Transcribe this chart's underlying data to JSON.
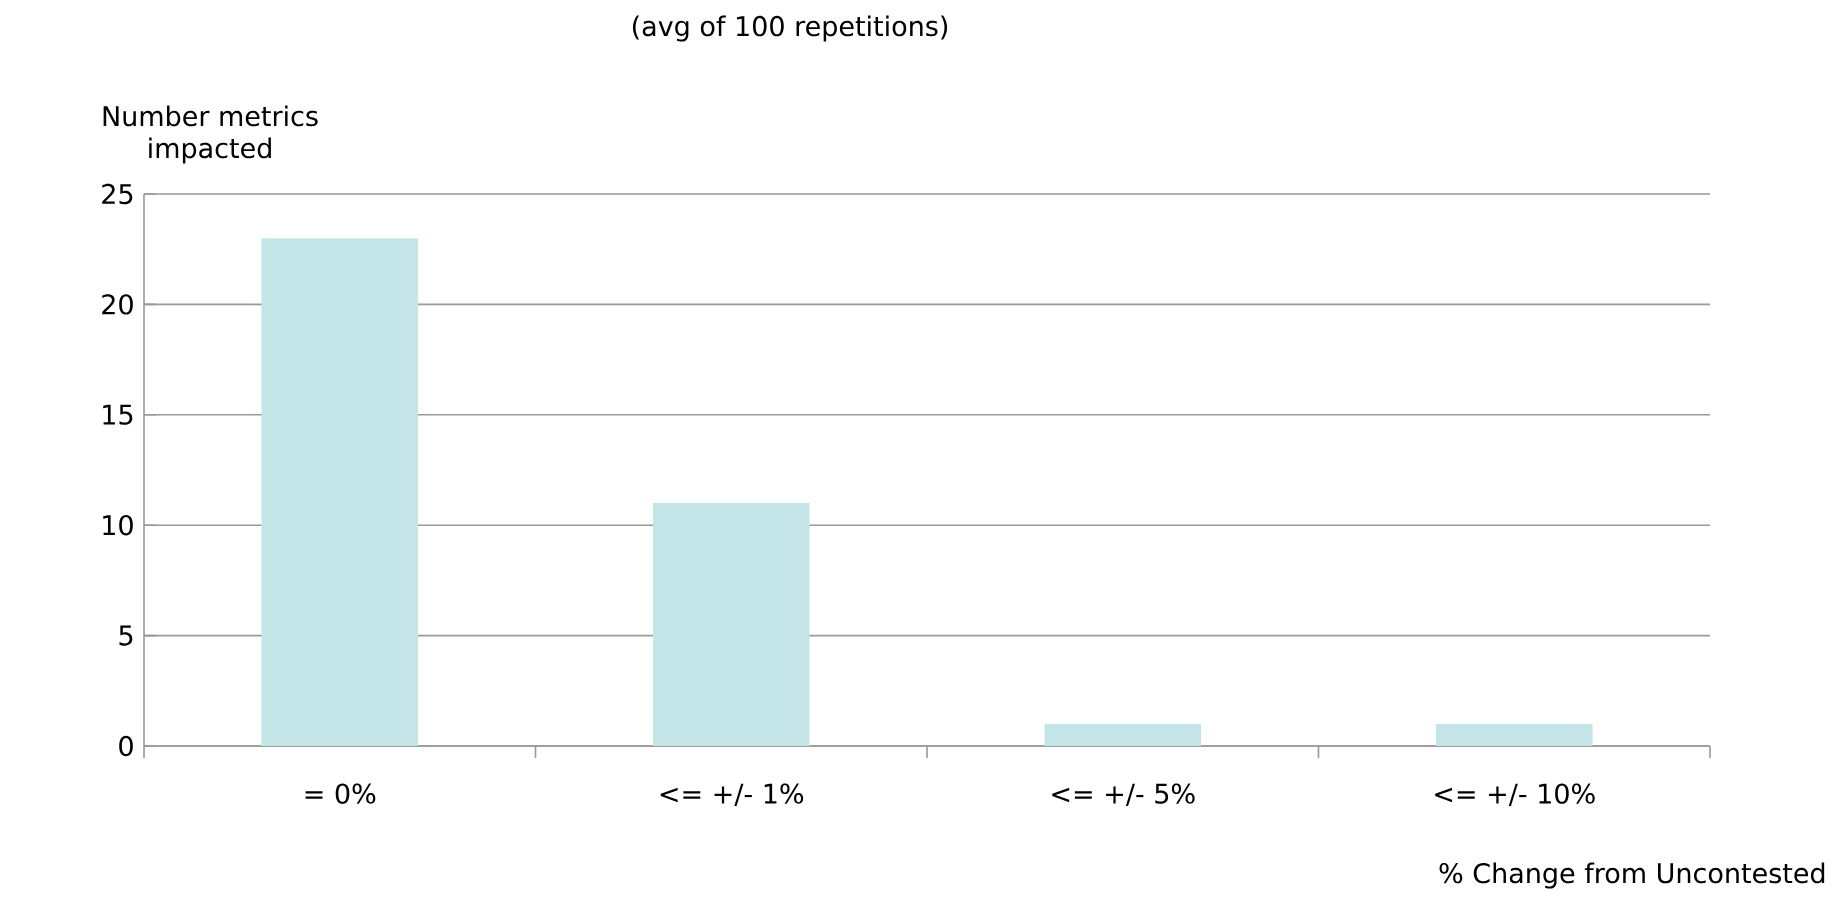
{
  "chart_data": {
    "type": "bar",
    "subtitle": "(avg of 100 repetitions)",
    "xlabel": "% Change from Uncontested",
    "ylabel": "Number metrics impacted",
    "categories": [
      "= 0%",
      "<= +/- 1%",
      "<= +/- 5%",
      "<= +/- 10%"
    ],
    "values": [
      23,
      11,
      1,
      1
    ],
    "color": "#c4e5e7",
    "ylim": [
      0,
      25
    ],
    "yticks": [
      0,
      5,
      10,
      15,
      20,
      25
    ],
    "grid": "y"
  }
}
